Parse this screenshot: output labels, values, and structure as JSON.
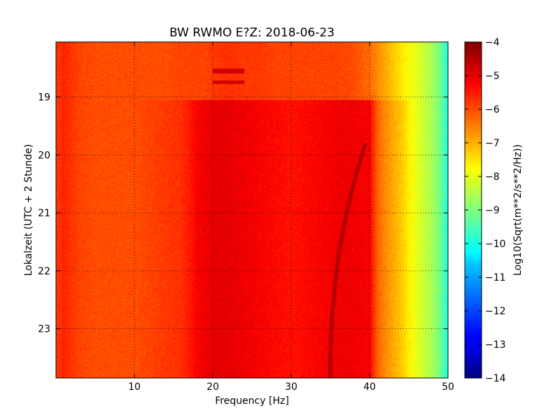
{
  "chart_data": {
    "type": "heatmap",
    "title": "BW RWMO E?Z: 2018-06-23",
    "xlabel": "Frequency [Hz]",
    "ylabel": "Lokalzeit (UTC + 2 Stunde)",
    "xlim": [
      0,
      50
    ],
    "ylim": [
      18.05,
      23.85
    ],
    "y_inverted": true,
    "grid": true,
    "x_ticks": [
      {
        "value": 10,
        "label": "10"
      },
      {
        "value": 20,
        "label": "20"
      },
      {
        "value": 30,
        "label": "30"
      },
      {
        "value": 40,
        "label": "40"
      },
      {
        "value": 50,
        "label": "50"
      }
    ],
    "y_ticks": [
      {
        "value": 19,
        "label": "19"
      },
      {
        "value": 20,
        "label": "20"
      },
      {
        "value": 21,
        "label": "21"
      },
      {
        "value": 22,
        "label": "22"
      },
      {
        "value": 23,
        "label": "23"
      }
    ],
    "colorbar": {
      "label": "Log10(Sqrt(m**2/s**2/Hz))",
      "min": -14,
      "max": -4,
      "colormap": "jet",
      "ticks": [
        {
          "value": -4,
          "label": "−4"
        },
        {
          "value": -5,
          "label": "−5"
        },
        {
          "value": -6,
          "label": "−6"
        },
        {
          "value": -7,
          "label": "−7"
        },
        {
          "value": -8,
          "label": "−8"
        },
        {
          "value": -9,
          "label": "−9"
        },
        {
          "value": -10,
          "label": "−10"
        },
        {
          "value": -11,
          "label": "−11"
        },
        {
          "value": -12,
          "label": "−12"
        },
        {
          "value": -13,
          "label": "−13"
        },
        {
          "value": -14,
          "label": "−14"
        }
      ]
    },
    "spectrum_profile": {
      "frequency_hz": [
        0,
        1,
        3,
        5,
        10,
        14,
        16,
        17,
        18,
        19,
        20,
        22,
        24,
        26,
        28,
        30,
        32,
        34,
        36,
        38,
        40,
        41,
        42,
        43,
        44,
        45,
        46,
        47,
        48,
        49,
        50
      ],
      "level_before_19": [
        -5.8,
        -5.6,
        -5.9,
        -6.0,
        -6.0,
        -6.0,
        -5.9,
        -5.9,
        -5.9,
        -5.9,
        -5.8,
        -5.7,
        -5.8,
        -5.8,
        -5.9,
        -5.9,
        -5.9,
        -5.9,
        -5.9,
        -6.0,
        -6.3,
        -6.6,
        -6.9,
        -7.2,
        -7.5,
        -7.8,
        -8.0,
        -8.3,
        -8.6,
        -9.1,
        -10.0
      ],
      "level_after_19": [
        -5.8,
        -5.6,
        -5.9,
        -6.0,
        -6.0,
        -5.8,
        -5.7,
        -5.5,
        -5.2,
        -5.1,
        -5.0,
        -5.0,
        -5.1,
        -5.2,
        -5.3,
        -5.4,
        -5.3,
        -5.2,
        -5.1,
        -5.1,
        -5.2,
        -6.2,
        -6.6,
        -6.9,
        -7.2,
        -7.6,
        -8.0,
        -8.3,
        -8.6,
        -9.1,
        -10.0
      ]
    },
    "features": [
      {
        "type": "tone",
        "t": [
          18.25,
          18.85
        ],
        "f": [
          20,
          28
        ],
        "level": -4.8
      },
      {
        "type": "sweep",
        "t": [
          19.8,
          23.85
        ],
        "f_start": 39.5,
        "f_end": 35.0,
        "level": -4.5
      }
    ]
  }
}
